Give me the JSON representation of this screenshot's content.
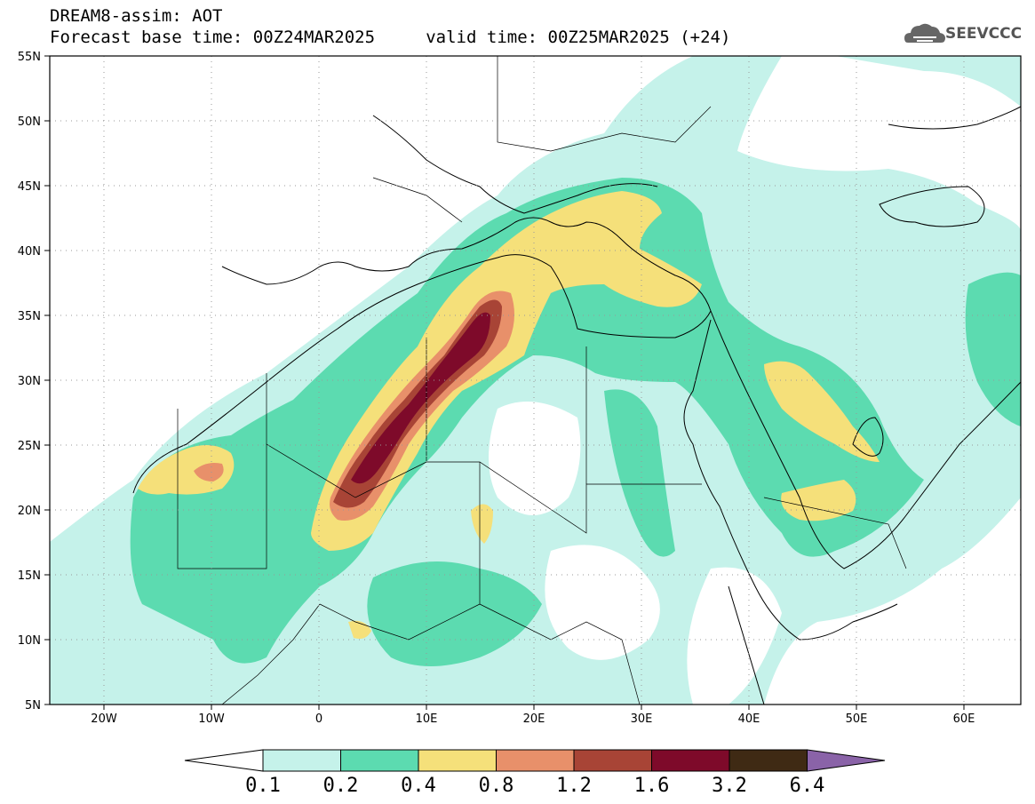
{
  "header": {
    "model_line": "DREAM8-assim: AOT",
    "time_line": "Forecast base time: 00Z24MAR2025     valid time: 00Z25MAR2025 (+24)",
    "logo_text": "SEEVCCC"
  },
  "map": {
    "lon_range": [
      -25,
      65
    ],
    "lat_range": [
      5,
      55
    ],
    "lat_ticks": [
      "55N",
      "50N",
      "45N",
      "40N",
      "35N",
      "30N",
      "25N",
      "20N",
      "15N",
      "10N",
      "5N"
    ],
    "lon_ticks": [
      "20W",
      "10W",
      "0",
      "10E",
      "20E",
      "30E",
      "40E",
      "50E",
      "60E"
    ],
    "grid": "dotted"
  },
  "colorbar": {
    "levels": [
      "0.1",
      "0.2",
      "0.4",
      "0.8",
      "1.2",
      "1.6",
      "3.2",
      "6.4"
    ],
    "colors": [
      "#c5f2ea",
      "#5cdbb0",
      "#f5e07a",
      "#e8906a",
      "#a84436",
      "#7e0a2a",
      "#3f2a14",
      "#8a63a8"
    ]
  }
}
